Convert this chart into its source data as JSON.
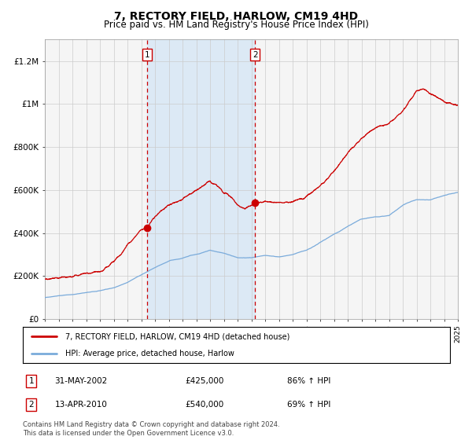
{
  "title": "7, RECTORY FIELD, HARLOW, CM19 4HD",
  "subtitle": "Price paid vs. HM Land Registry's House Price Index (HPI)",
  "title_fontsize": 10,
  "subtitle_fontsize": 8.5,
  "ylabel_ticks": [
    "£0",
    "£200K",
    "£400K",
    "£600K",
    "£800K",
    "£1M",
    "£1.2M"
  ],
  "ylabel_values": [
    0,
    200000,
    400000,
    600000,
    800000,
    1000000,
    1200000
  ],
  "ylim": [
    0,
    1300000
  ],
  "x_start_year": 1995,
  "x_end_year": 2025,
  "purchase1_date": 2002.42,
  "purchase1_price": 425000,
  "purchase1_label": "1",
  "purchase2_date": 2010.28,
  "purchase2_price": 540000,
  "purchase2_label": "2",
  "shade_color": "#dce9f5",
  "red_line_color": "#cc0000",
  "blue_line_color": "#7aabdb",
  "grid_color": "#cccccc",
  "bg_color": "#ffffff",
  "plot_bg_color": "#f5f5f5",
  "legend1_text": "7, RECTORY FIELD, HARLOW, CM19 4HD (detached house)",
  "legend2_text": "HPI: Average price, detached house, Harlow",
  "table_row1": [
    "1",
    "31-MAY-2002",
    "£425,000",
    "86% ↑ HPI"
  ],
  "table_row2": [
    "2",
    "13-APR-2010",
    "£540,000",
    "69% ↑ HPI"
  ],
  "footnote": "Contains HM Land Registry data © Crown copyright and database right 2024.\nThis data is licensed under the Open Government Licence v3.0."
}
